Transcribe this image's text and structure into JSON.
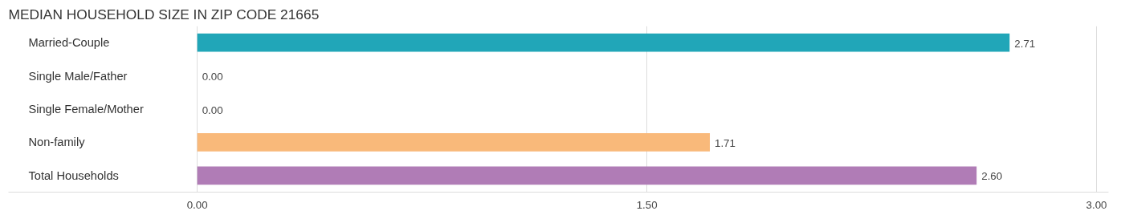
{
  "chart_data": {
    "type": "bar",
    "orientation": "horizontal",
    "title": "MEDIAN HOUSEHOLD SIZE IN ZIP CODE 21665",
    "categories": [
      "Married-Couple",
      "Single Male/Father",
      "Single Female/Mother",
      "Non-family",
      "Total Households"
    ],
    "values": [
      2.71,
      0,
      0,
      1.71,
      2.6
    ],
    "colors": [
      "#21a6b8",
      "#a9c6ec",
      "#f5a8c4",
      "#f9b97a",
      "#b07cb6"
    ],
    "value_labels": [
      "2.71",
      "0.00",
      "0.00",
      "1.71",
      "2.60"
    ],
    "xlim": [
      -0.63,
      3.04
    ],
    "xticks": [
      {
        "value": 0,
        "label": "0.00"
      },
      {
        "value": 1.5,
        "label": "1.50"
      },
      {
        "value": 3,
        "label": "3.00"
      }
    ],
    "grid": "x"
  }
}
